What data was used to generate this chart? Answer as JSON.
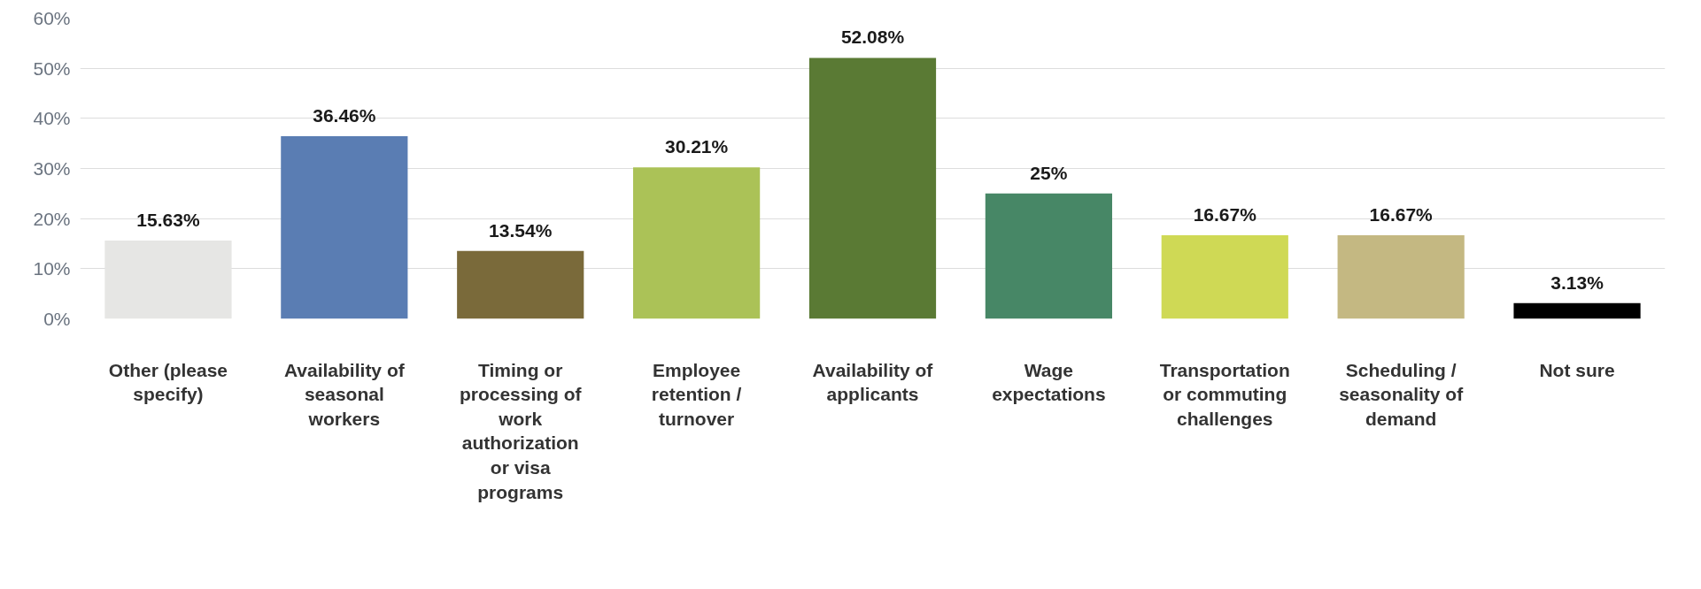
{
  "chart_data": {
    "type": "bar",
    "categories": [
      "Other (please specify)",
      "Availability of seasonal workers",
      "Timing or processing of work authorization or visa programs",
      "Employee retention / turnover",
      "Availability of applicants",
      "Wage expectations",
      "Transportation or commuting challenges",
      "Scheduling / seasonality of demand",
      "Not sure"
    ],
    "values": [
      15.63,
      36.46,
      13.54,
      30.21,
      52.08,
      25,
      16.67,
      16.67,
      3.13
    ],
    "value_labels": [
      "15.63%",
      "36.46%",
      "13.54%",
      "30.21%",
      "52.08%",
      "25%",
      "16.67%",
      "16.67%",
      "3.13%"
    ],
    "colors": [
      "#e6e6e4",
      "#5a7db3",
      "#7a6a3a",
      "#abc257",
      "#5a7a34",
      "#478766",
      "#cfd955",
      "#c4b882",
      "#000000"
    ],
    "ylim": [
      0,
      60
    ],
    "yticks": [
      {
        "value": 0,
        "label": "0%"
      },
      {
        "value": 10,
        "label": "10%"
      },
      {
        "value": 20,
        "label": "20%"
      },
      {
        "value": 30,
        "label": "30%"
      },
      {
        "value": 40,
        "label": "40%"
      },
      {
        "value": 50,
        "label": "50%"
      },
      {
        "value": 60,
        "label": "60%"
      }
    ],
    "grid": "y"
  }
}
